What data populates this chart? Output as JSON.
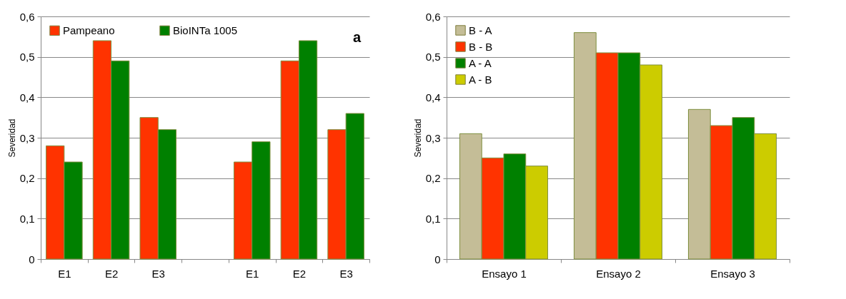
{
  "chart_data": [
    {
      "type": "bar",
      "ylabel": "Severidad",
      "categories": [
        "E1",
        "E2",
        "E3",
        null,
        "E1",
        "E2",
        "E3"
      ],
      "series": [
        {
          "name": "Pampeano",
          "color": "#ff3300",
          "values": [
            0.28,
            0.54,
            0.35,
            null,
            0.24,
            0.49,
            0.32
          ]
        },
        {
          "name": "BioINTa 1005",
          "color": "#008000",
          "values": [
            0.24,
            0.49,
            0.32,
            null,
            0.29,
            0.54,
            0.36
          ]
        }
      ],
      "ylim": [
        0,
        0.6
      ],
      "yticks": [
        {
          "value": 0,
          "label": "0"
        },
        {
          "value": 0.1,
          "label": "0,1"
        },
        {
          "value": 0.2,
          "label": "0,2"
        },
        {
          "value": 0.3,
          "label": "0,3"
        },
        {
          "value": 0.4,
          "label": "0,4"
        },
        {
          "value": 0.5,
          "label": "0,5"
        },
        {
          "value": 0.6,
          "label": "0,6"
        }
      ],
      "grid": "y",
      "legend": "top",
      "annotations": [
        "a"
      ]
    },
    {
      "type": "bar",
      "ylabel": "Severidad",
      "categories": [
        "Ensayo 1",
        "Ensayo 2",
        "Ensayo 3"
      ],
      "series": [
        {
          "name": "B - A",
          "color": "#c4bd97",
          "values": [
            0.31,
            0.56,
            0.37
          ]
        },
        {
          "name": "B - B",
          "color": "#ff3300",
          "values": [
            0.25,
            0.51,
            0.33
          ]
        },
        {
          "name": "A - A",
          "color": "#008000",
          "values": [
            0.26,
            0.51,
            0.35
          ]
        },
        {
          "name": "A - B",
          "color": "#cccc00",
          "values": [
            0.23,
            0.48,
            0.31
          ]
        }
      ],
      "ylim": [
        0,
        0.6
      ],
      "yticks": [
        {
          "value": 0,
          "label": "0"
        },
        {
          "value": 0.1,
          "label": "0,1"
        },
        {
          "value": 0.2,
          "label": "0,2"
        },
        {
          "value": 0.3,
          "label": "0,3"
        },
        {
          "value": 0.4,
          "label": "0,4"
        },
        {
          "value": 0.5,
          "label": "0,5"
        },
        {
          "value": 0.6,
          "label": "0,6"
        }
      ],
      "grid": "y",
      "legend": "top left"
    }
  ]
}
